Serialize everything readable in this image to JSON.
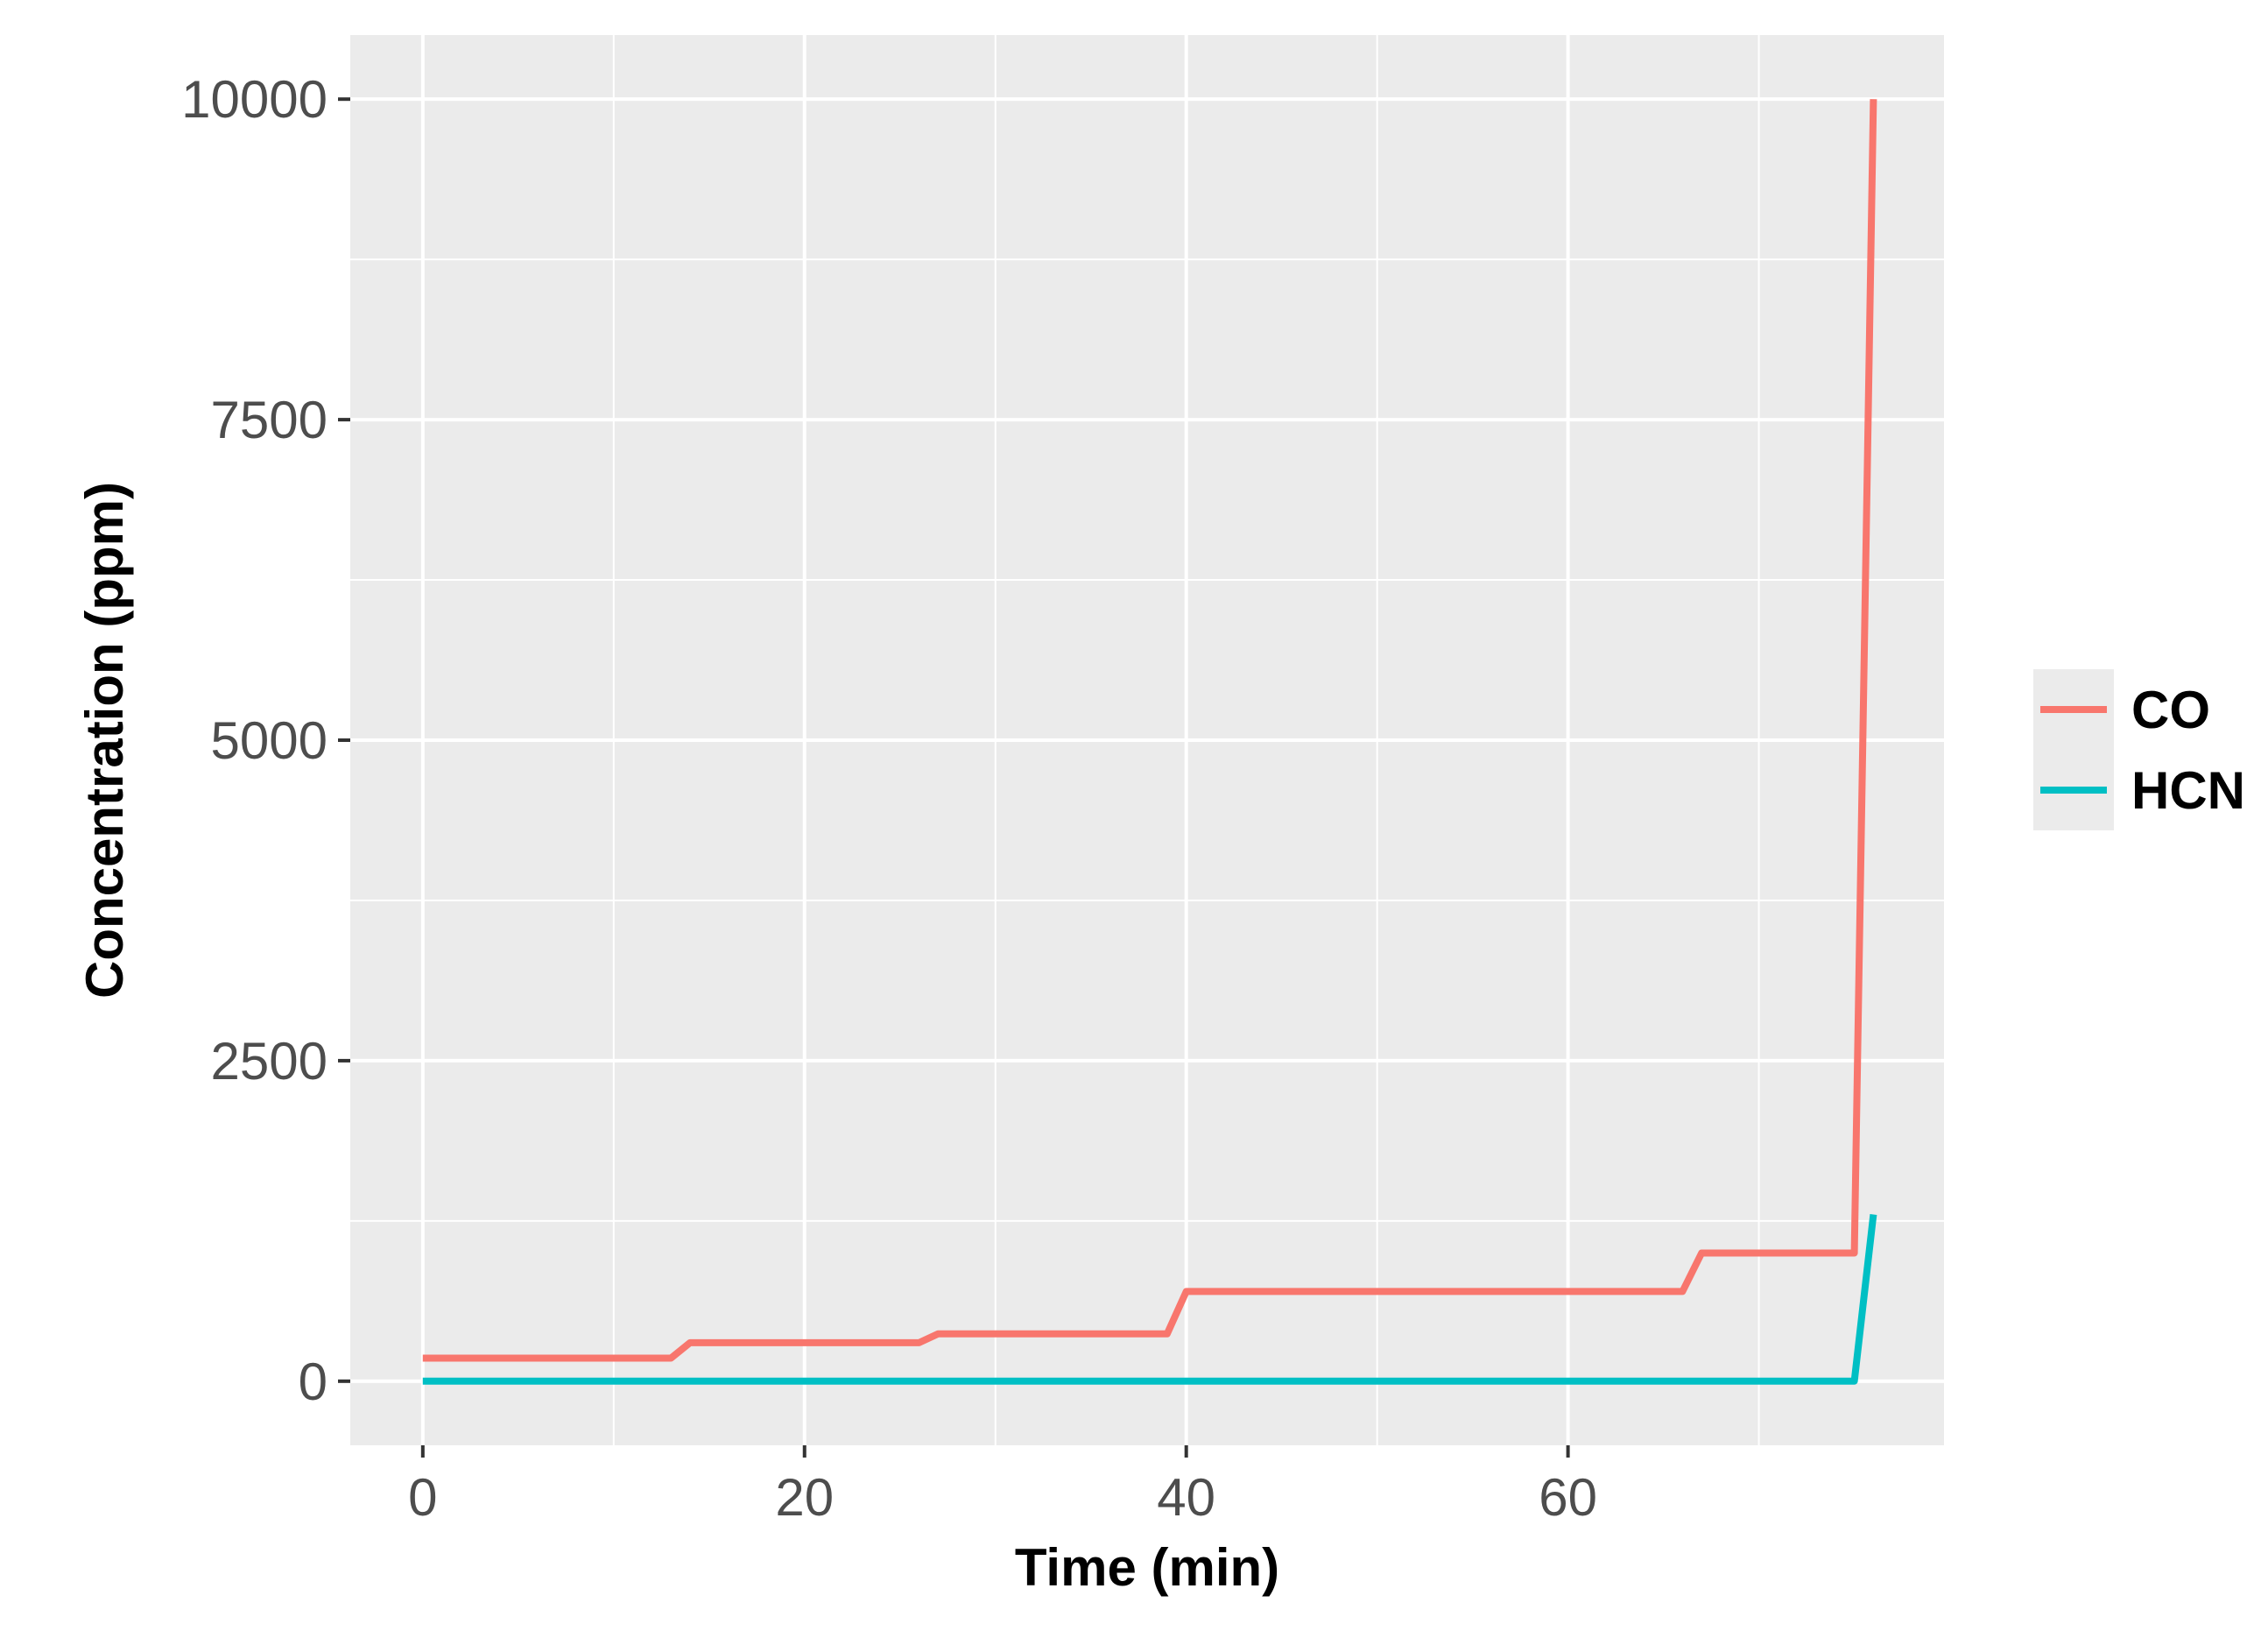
{
  "chart_data": {
    "type": "line",
    "title": "",
    "xlabel": "Time (min)",
    "ylabel": "Concentration (ppm)",
    "xlim": [
      -3.8,
      79.7
    ],
    "ylim": [
      -500,
      10500
    ],
    "x_ticks": [
      0,
      20,
      40,
      60
    ],
    "x_tick_labels": [
      "0",
      "20",
      "40",
      "60"
    ],
    "y_ticks": [
      0,
      2500,
      5000,
      7500,
      10000
    ],
    "y_tick_labels": [
      "0",
      "2500",
      "5000",
      "7500",
      "10000"
    ],
    "grid": true,
    "legend_position": "right",
    "series": [
      {
        "name": "CO",
        "color": "#F8766D",
        "points": [
          [
            0,
            180
          ],
          [
            13,
            180
          ],
          [
            14,
            300
          ],
          [
            26,
            300
          ],
          [
            27,
            370
          ],
          [
            39,
            370
          ],
          [
            40,
            700
          ],
          [
            66,
            700
          ],
          [
            67,
            1000
          ],
          [
            75,
            1000
          ],
          [
            76,
            10000
          ]
        ]
      },
      {
        "name": "HCN",
        "color": "#00BFC4",
        "points": [
          [
            0,
            0
          ],
          [
            75,
            0
          ],
          [
            76,
            1300
          ]
        ]
      }
    ]
  }
}
